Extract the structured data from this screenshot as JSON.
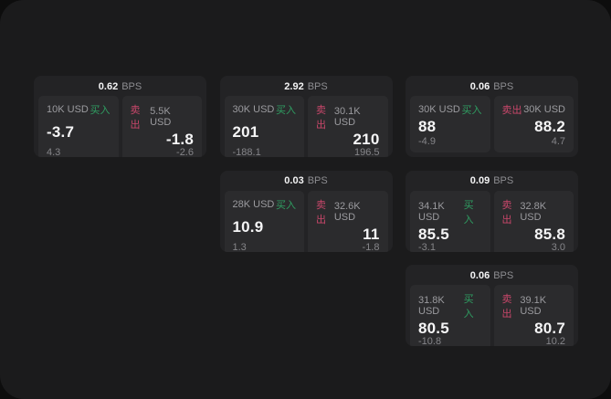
{
  "labels": {
    "bps": "BPS",
    "buy": "买入",
    "sell": "卖出"
  },
  "colors": {
    "buy": "#2f9e62",
    "sell": "#c9476b",
    "surface": "#1b1b1c",
    "card": "#232325",
    "subpanel": "#2b2b2d"
  },
  "cards": [
    {
      "row": 0,
      "col": 0,
      "bps": "0.62",
      "buy": {
        "amount": "10K USD",
        "value": "-3.7",
        "sub": "4.3"
      },
      "sell": {
        "amount": "5.5K USD",
        "value": "-1.8",
        "sub": "-2.6"
      }
    },
    {
      "row": 0,
      "col": 1,
      "bps": "2.92",
      "buy": {
        "amount": "30K USD",
        "value": "201",
        "sub": "-188.1"
      },
      "sell": {
        "amount": "30.1K USD",
        "value": "210",
        "sub": "196.5"
      }
    },
    {
      "row": 0,
      "col": 2,
      "bps": "0.06",
      "buy": {
        "amount": "30K USD",
        "value": "88",
        "sub": "-4.9"
      },
      "sell": {
        "amount": "30K USD",
        "value": "88.2",
        "sub": "4.7"
      }
    },
    {
      "row": 1,
      "col": 1,
      "bps": "0.03",
      "buy": {
        "amount": "28K USD",
        "value": "10.9",
        "sub": "1.3"
      },
      "sell": {
        "amount": "32.6K USD",
        "value": "11",
        "sub": "-1.8"
      }
    },
    {
      "row": 1,
      "col": 2,
      "bps": "0.09",
      "buy": {
        "amount": "34.1K USD",
        "value": "85.5",
        "sub": "-3.1"
      },
      "sell": {
        "amount": "32.8K USD",
        "value": "85.8",
        "sub": "3.0"
      }
    },
    {
      "row": 2,
      "col": 2,
      "bps": "0.06",
      "buy": {
        "amount": "31.8K USD",
        "value": "80.5",
        "sub": "-10.8"
      },
      "sell": {
        "amount": "39.1K USD",
        "value": "80.7",
        "sub": "10.2"
      }
    }
  ]
}
